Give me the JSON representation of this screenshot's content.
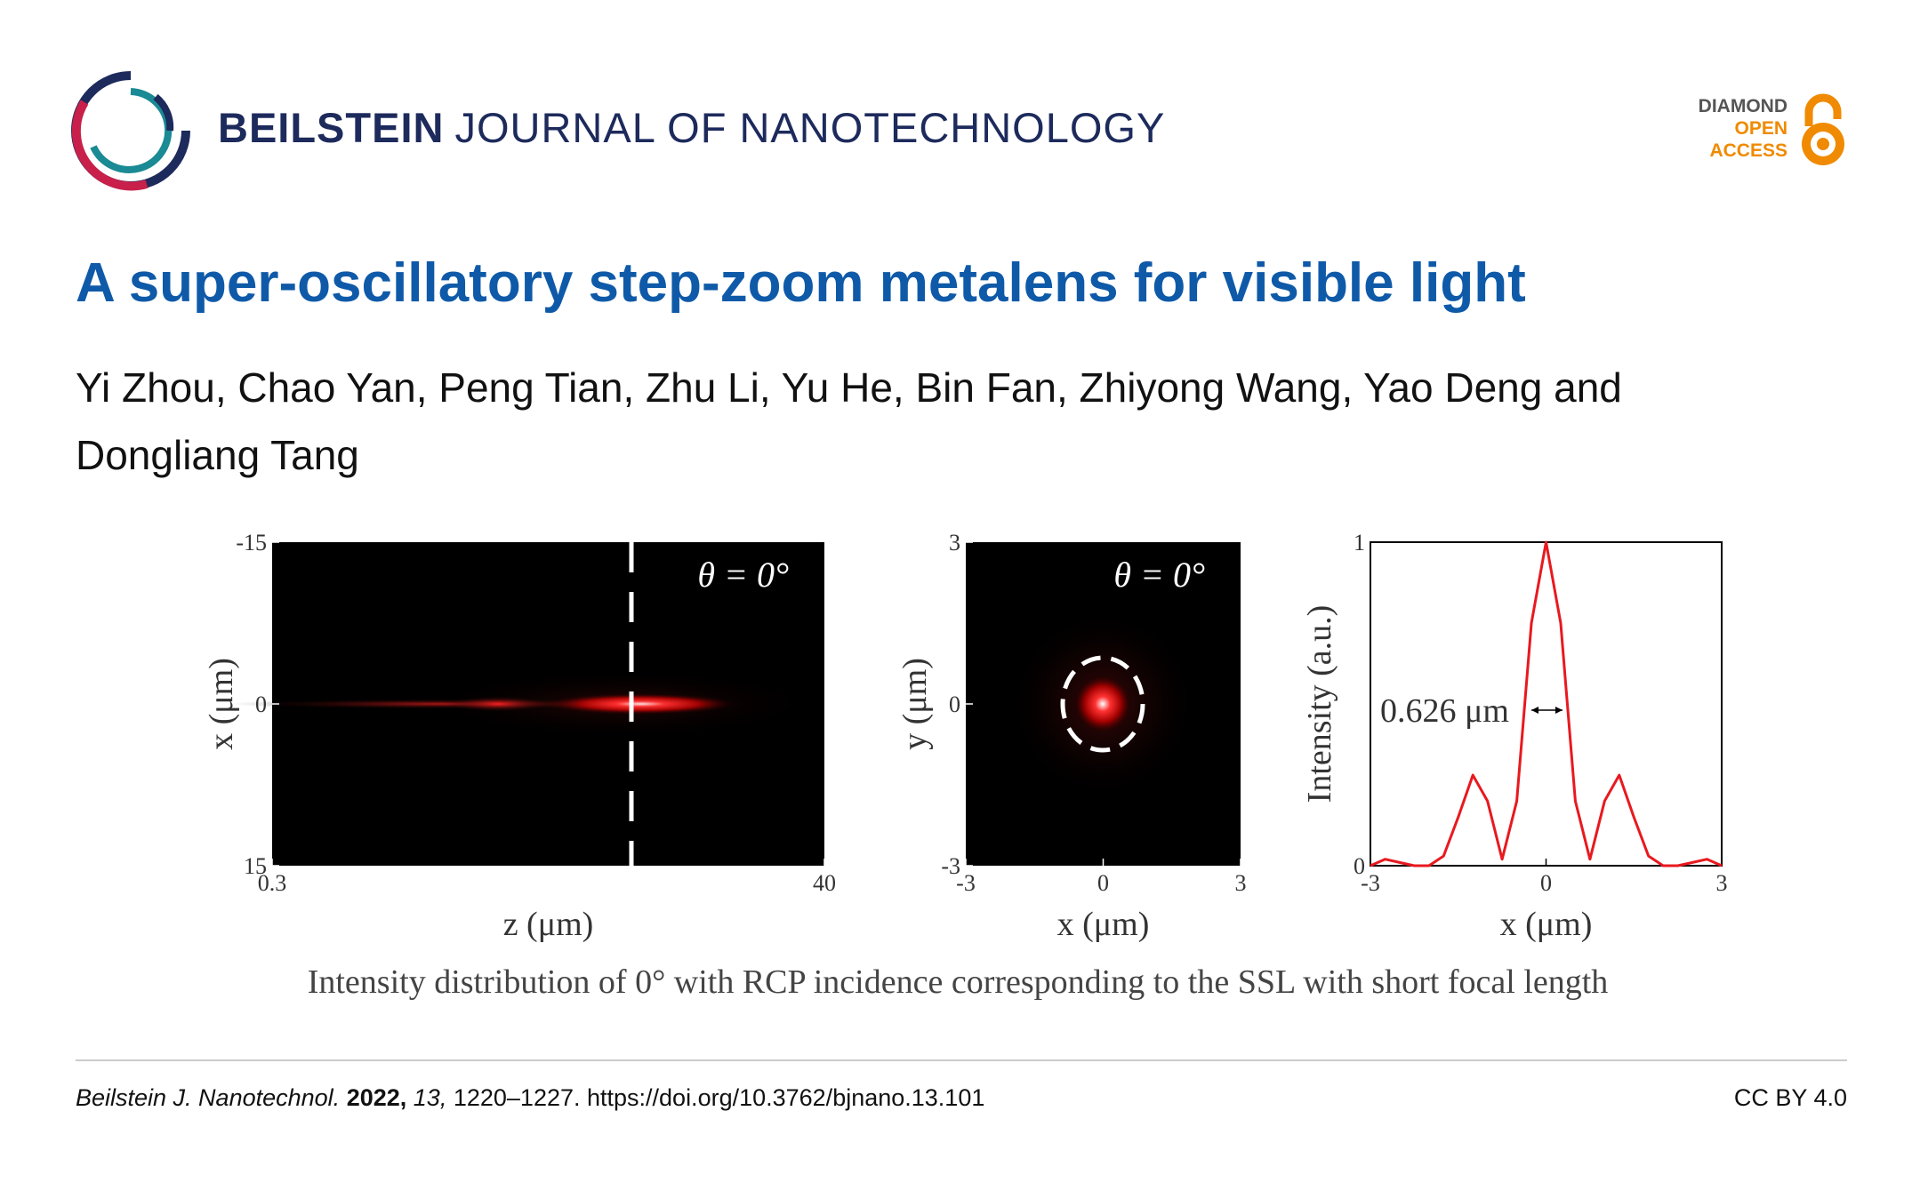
{
  "header": {
    "journal_bold": "BEILSTEIN",
    "journal_light": "JOURNAL OF NANOTECHNOLOGY",
    "badge": [
      "DIAMOND",
      "OPEN",
      "ACCESS"
    ]
  },
  "title": "A super-oscillatory step-zoom metalens for visible light",
  "authors": "Yi Zhou, Chao Yan, Peng Tian, Zhu Li, Yu He, Bin Fan, Zhiyong Wang, Yao Deng and Dongliang Tang",
  "figure": {
    "panels": [
      {
        "theta": "θ = 0°",
        "x_label": "z (μm)",
        "y_label": "x (μm)",
        "xlim": [
          0.3,
          40
        ],
        "xticks": [
          0.3,
          40
        ],
        "ylim": [
          -15,
          15
        ],
        "yticks": [
          -15,
          0,
          15
        ],
        "y_inverted": true
      },
      {
        "theta": "θ = 0°",
        "x_label": "x (μm)",
        "y_label": "y (μm)",
        "xlim": [
          -3,
          3
        ],
        "xticks": [
          -3,
          0,
          3
        ],
        "ylim": [
          -3,
          3
        ],
        "yticks": [
          -3,
          0,
          3
        ]
      },
      {
        "x_label": "x (μm)",
        "y_label": "Intensity (a.u.)",
        "xlim": [
          -3,
          3
        ],
        "xticks": [
          -3,
          0,
          3
        ],
        "ylim": [
          0,
          1
        ],
        "yticks": [
          0,
          1
        ],
        "annotation": "0.626 μm",
        "curve": {
          "color": "#e8191f",
          "x": [
            -3,
            -2.75,
            -2.5,
            -2.25,
            -2,
            -1.75,
            -1.5,
            -1.25,
            -1,
            -0.75,
            -0.5,
            -0.25,
            0,
            0.25,
            0.5,
            0.75,
            1,
            1.25,
            1.5,
            1.75,
            2,
            2.25,
            2.5,
            2.75,
            3
          ],
          "y": [
            0,
            0.02,
            0.01,
            0,
            0,
            0.03,
            0.15,
            0.28,
            0.2,
            0.02,
            0.2,
            0.75,
            1,
            0.75,
            0.2,
            0.02,
            0.2,
            0.28,
            0.15,
            0.03,
            0,
            0,
            0.01,
            0.02,
            0
          ]
        }
      }
    ],
    "caption": "Intensity distribution of  0°  with RCP incidence corresponding to the SSL with short focal length"
  },
  "footer": {
    "journal": "Beilstein J. Nanotechnol.",
    "year": "2022,",
    "volume": "13,",
    "pages_doi": "1220–1227. https://doi.org/10.3762/bjnano.13.101",
    "license": "CC BY 4.0"
  }
}
